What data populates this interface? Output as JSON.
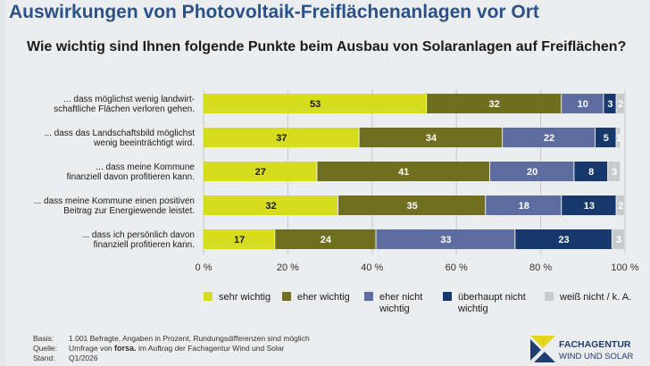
{
  "header": {
    "title": "Auswirkungen von Photovoltaik-Freiflächenanlagen vor Ort",
    "subtitle": "Wie wichtig sind Ihnen folgende Punkte beim Ausbau von Solaranlagen auf Freiflächen?"
  },
  "chart_data": {
    "type": "bar",
    "stacked": true,
    "orientation": "horizontal",
    "categories": [
      [
        "... dass möglichst wenig landwirt-",
        "schaftliche Flächen verloren gehen."
      ],
      [
        "... dass das Landschaftsbild möglichst",
        "wenig beeinträchtigt wird."
      ],
      [
        "... dass meine Kommune",
        "finanziell davon profitieren kann."
      ],
      [
        "... dass meine Kommune einen positiven",
        "Beitrag zur Energiewende leistet."
      ],
      [
        "... dass ich persönlich davon",
        "finanziell profitieren kann."
      ]
    ],
    "series": [
      {
        "name": "sehr wichtig",
        "color": "#d8dc1f",
        "label_color": "#1b1b1b",
        "values": [
          53,
          37,
          27,
          32,
          17
        ]
      },
      {
        "name": "eher wichtig",
        "color": "#6f6f1f",
        "label_color": "#ffffff",
        "values": [
          32,
          34,
          41,
          35,
          24
        ]
      },
      {
        "name": "eher nicht wichtig",
        "color": "#5e6d9f",
        "label_color": "#ffffff",
        "values": [
          10,
          22,
          20,
          18,
          33
        ]
      },
      {
        "name": "überhaupt nicht wichtig",
        "color": "#17386b",
        "label_color": "#ffffff",
        "values": [
          3,
          5,
          8,
          13,
          23
        ]
      },
      {
        "name": "weiß nicht / k. A.",
        "color": "#c9cacc",
        "label_color": "#ffffff",
        "values": [
          2,
          1,
          3,
          2,
          3
        ]
      }
    ],
    "legend_labels": [
      [
        "sehr wichtig"
      ],
      [
        "eher wichtig"
      ],
      [
        "eher nicht",
        "wichtig"
      ],
      [
        "überhaupt nicht",
        "wichtig"
      ],
      [
        "weiß nicht / k. A."
      ]
    ],
    "xlim": [
      0,
      100
    ],
    "xticks": [
      0,
      20,
      40,
      60,
      80,
      100
    ],
    "xtick_labels": [
      "0 %",
      "20 %",
      "40 %",
      "60 %",
      "80 %",
      "100 %"
    ],
    "grid": true,
    "legend_position": "bottom"
  },
  "footer": {
    "basis_key": "Basis:",
    "basis_text": "1.001 Befragte, Angaben in Prozent, Rundungsdifferenzen sind möglich",
    "quelle_key": "Quelle:",
    "quelle_pre": "Umfrage von",
    "quelle_brand": "forsa.",
    "quelle_post": "im Auftrag der Fachagentur Wind und Solar",
    "stand_key": "Stand:",
    "stand_text": "Q1/2026"
  },
  "logo": {
    "line1": "FACHAGENTUR",
    "line2": "WIND UND SOLAR"
  }
}
